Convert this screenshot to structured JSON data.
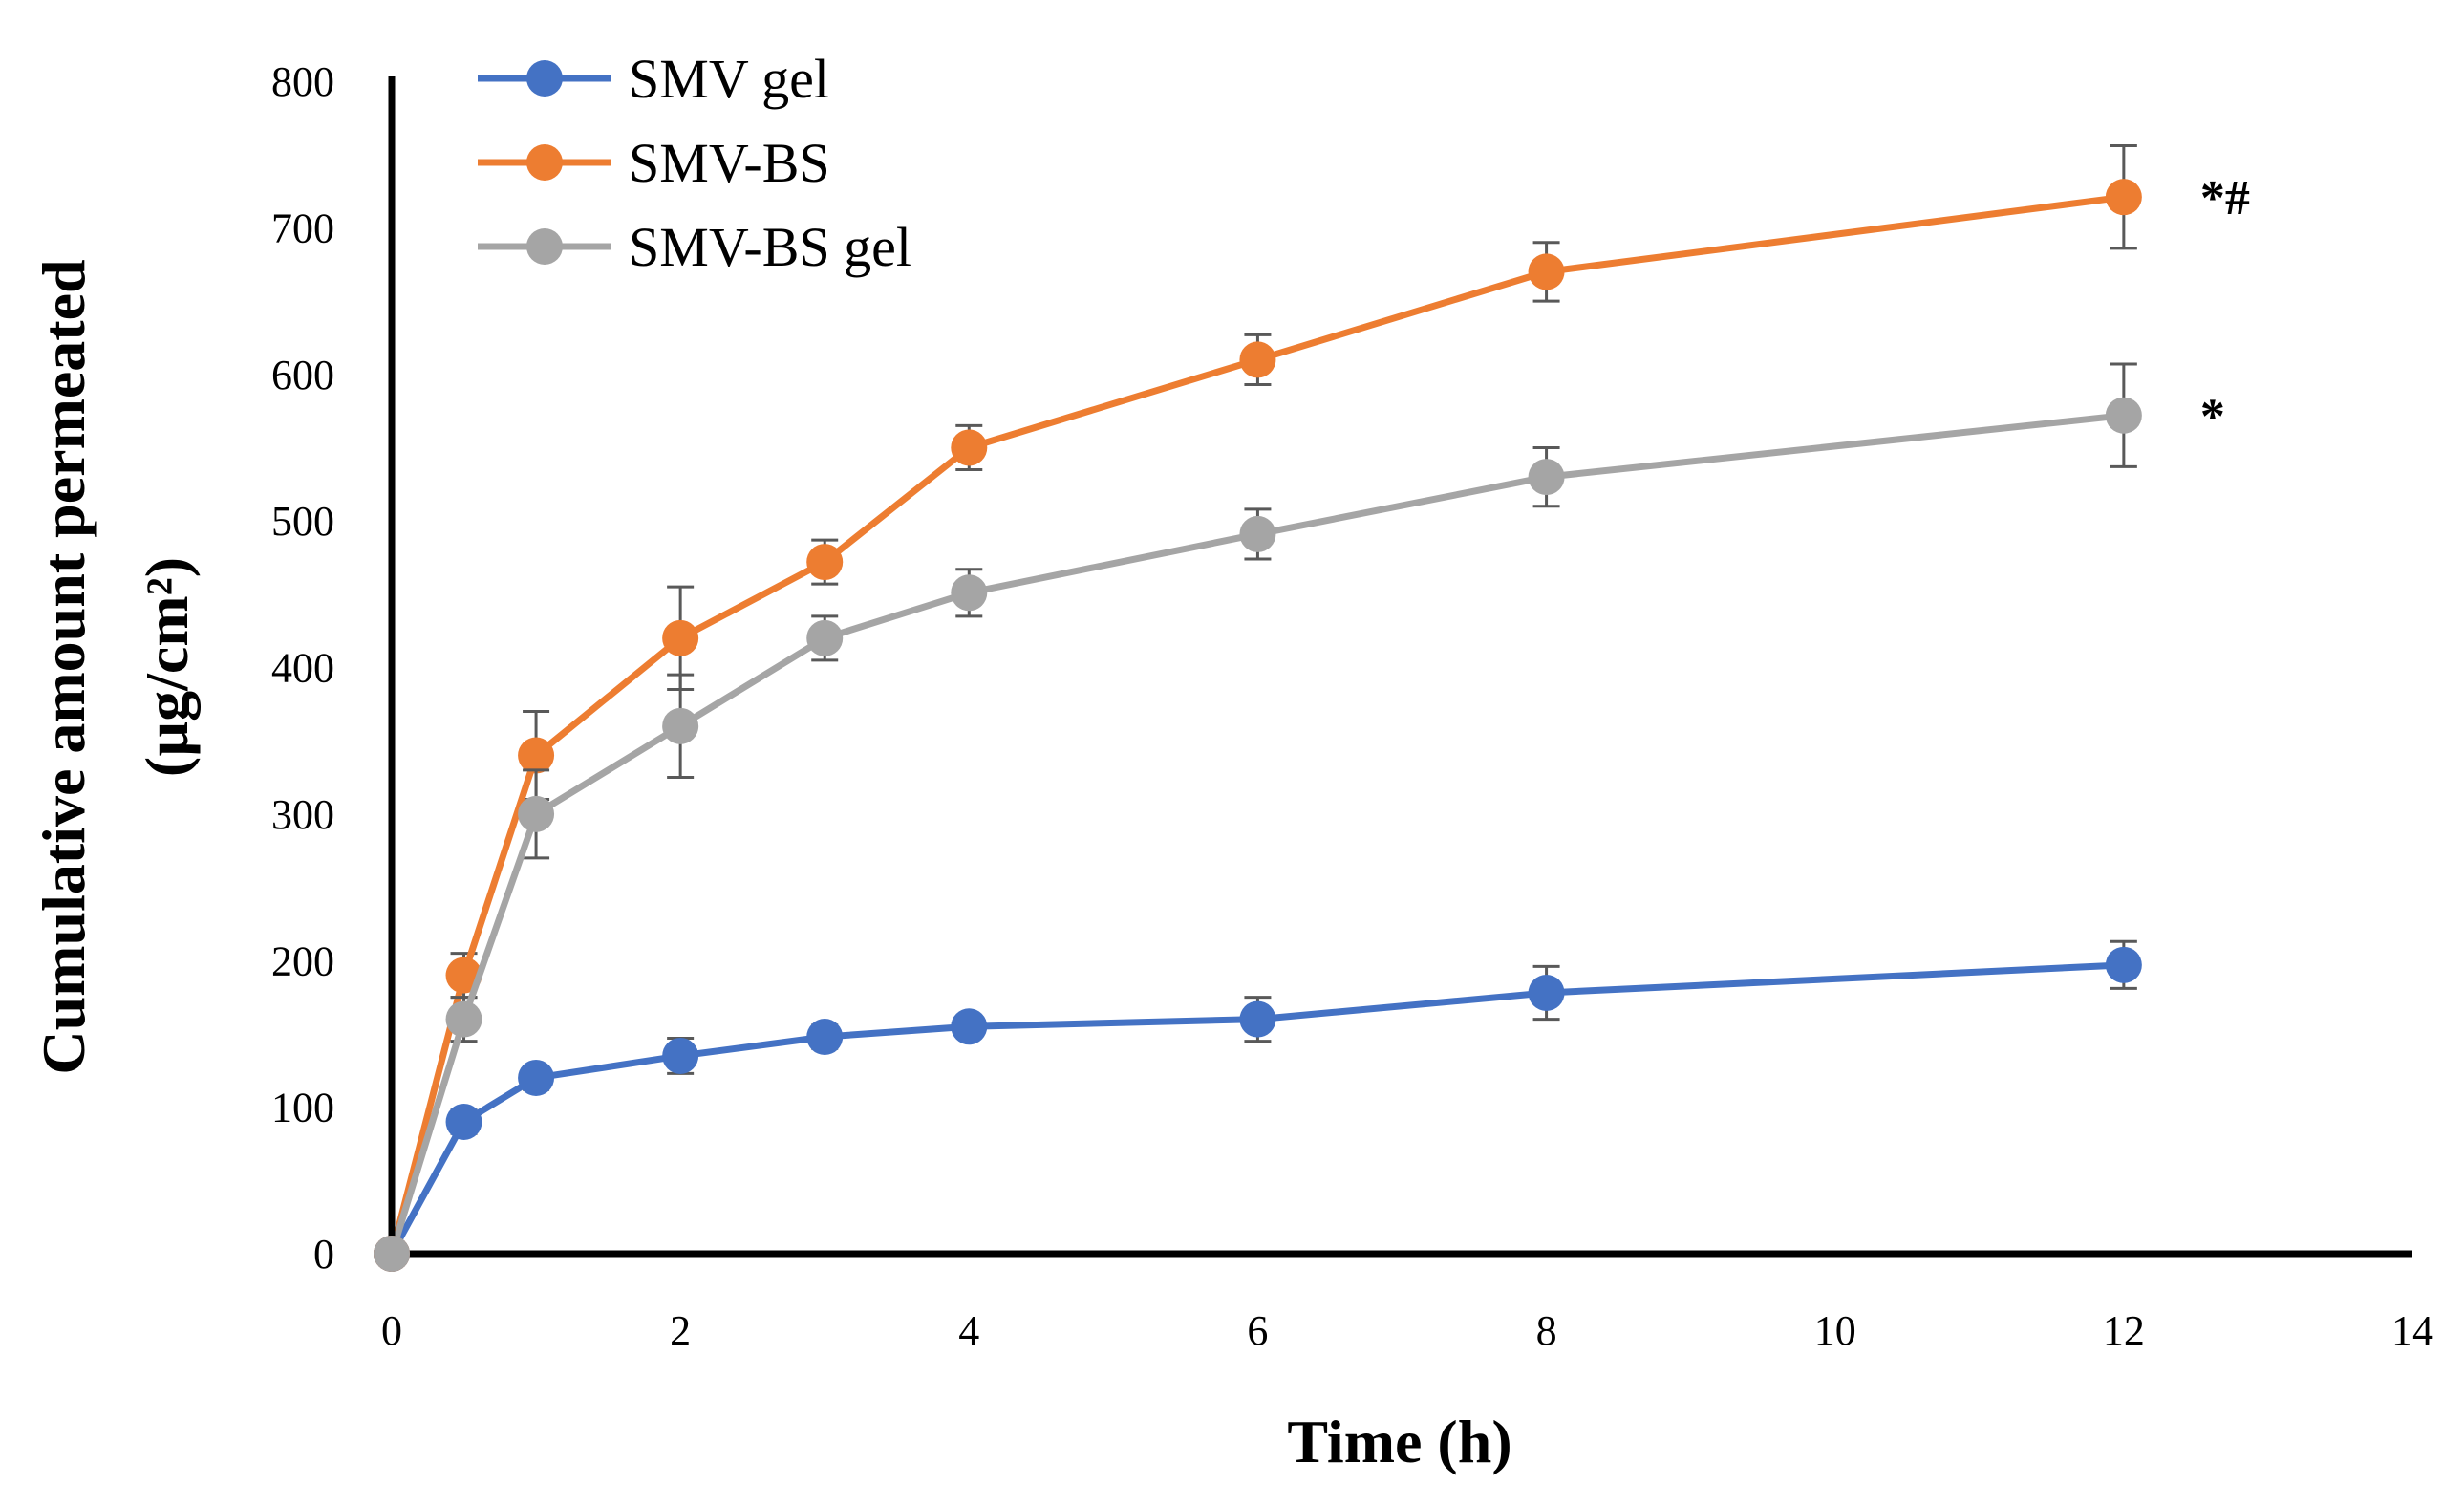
{
  "chart_data": {
    "type": "line",
    "title": "",
    "xlabel": "Time (h)",
    "ylabel_line1": "Cumulative amount permeated",
    "ylabel_line2": "(µg/cm²)",
    "xlim": [
      0,
      14
    ],
    "ylim": [
      0,
      800
    ],
    "xticks": [
      0,
      2,
      4,
      6,
      8,
      10,
      12,
      14
    ],
    "yticks": [
      0,
      100,
      200,
      300,
      400,
      500,
      600,
      700,
      800
    ],
    "grid": false,
    "legend_position": "top-left",
    "series": [
      {
        "name": "SMV gel",
        "color": "#4472C4",
        "x": [
          0,
          0.5,
          1,
          2,
          3,
          4,
          6,
          8,
          12
        ],
        "y": [
          0,
          90,
          120,
          135,
          148,
          155,
          160,
          178,
          197
        ],
        "err": [
          0,
          8,
          8,
          12,
          8,
          7,
          15,
          18,
          16
        ]
      },
      {
        "name": "SMV-BS",
        "color": "#ED7D31",
        "x": [
          0,
          0.5,
          1,
          2,
          3,
          4,
          6,
          8,
          12
        ],
        "y": [
          0,
          190,
          340,
          420,
          472,
          550,
          610,
          670,
          721
        ],
        "err": [
          0,
          15,
          30,
          35,
          15,
          15,
          17,
          20,
          35
        ]
      },
      {
        "name": "SMV-BS gel",
        "color": "#A5A5A5",
        "x": [
          0,
          0.5,
          1,
          2,
          3,
          4,
          6,
          8,
          12
        ],
        "y": [
          0,
          160,
          300,
          360,
          420,
          451,
          491,
          530,
          572
        ],
        "err": [
          0,
          15,
          30,
          35,
          15,
          16,
          17,
          20,
          35
        ]
      }
    ],
    "annotations": [
      {
        "text": "*#",
        "series": "SMV-BS",
        "x": 12
      },
      {
        "text": "*",
        "series": "SMV-BS gel",
        "x": 12
      }
    ]
  }
}
